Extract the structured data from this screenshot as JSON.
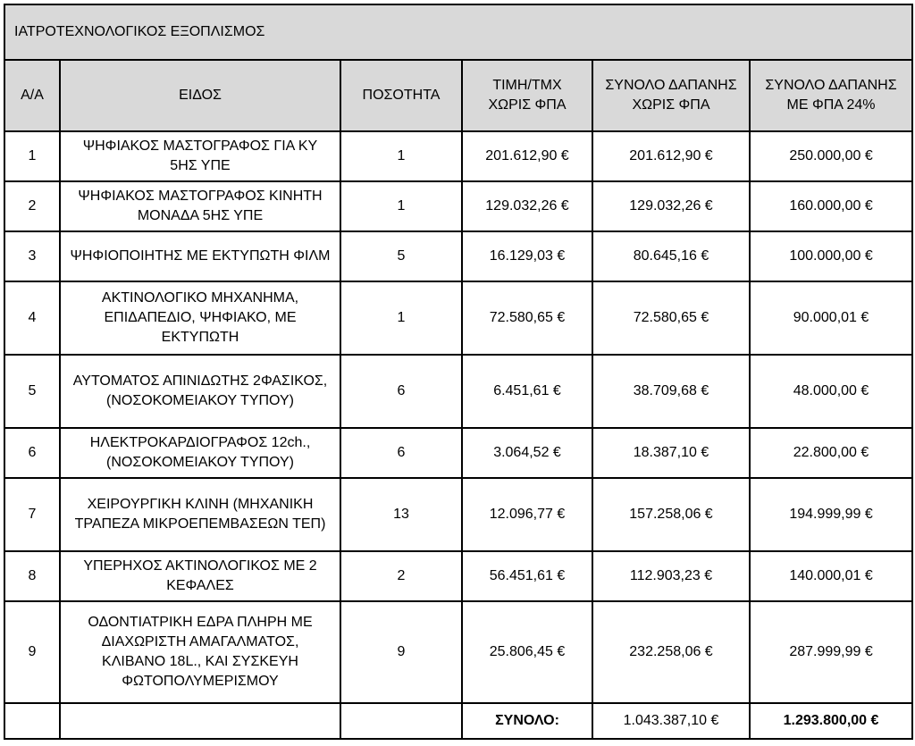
{
  "title": "ΙΑΤΡΟΤΕΧΝΟΛΟΓΙΚΟΣ ΕΞΟΠΛΙΣΜΟΣ",
  "table": {
    "columns": [
      "Α/Α",
      "ΕΙΔΟΣ",
      "ΠΟΣΟΤΗΤΑ",
      "ΤΙΜΗ/ΤΜΧ ΧΩΡΙΣ ΦΠΑ",
      "ΣΥΝΟΛΟ ΔΑΠΑΝΗΣ ΧΩΡΙΣ ΦΠΑ",
      "ΣΥΝΟΛΟ ΔΑΠΑΝΗΣ ΜΕ ΦΠΑ 24%"
    ],
    "rows": [
      [
        "1",
        "ΨΗΦΙΑΚΟΣ ΜΑΣΤΟΓΡΑΦΟΣ ΓΙΑ ΚΥ 5ΗΣ ΥΠΕ",
        "1",
        "201.612,90 €",
        "201.612,90 €",
        "250.000,00 €"
      ],
      [
        "2",
        "ΨΗΦΙΑΚΟΣ ΜΑΣΤΟΓΡΑΦΟΣ ΚΙΝΗΤΗ ΜΟΝΑΔΑ 5ΗΣ ΥΠΕ",
        "1",
        "129.032,26 €",
        "129.032,26 €",
        "160.000,00 €"
      ],
      [
        "3",
        "ΨΗΦΙΟΠΟΙΗΤΗΣ ΜΕ ΕΚΤΥΠΩΤΗ ΦΙΛΜ",
        "5",
        "16.129,03 €",
        "80.645,16 €",
        "100.000,00 €"
      ],
      [
        "4",
        "ΑΚΤΙΝΟΛΟΓΙΚΟ ΜΗΧΑΝΗΜΑ, ΕΠΙΔΑΠΕΔΙΟ, ΨΗΦΙΑΚΟ, ΜΕ ΕΚΤΥΠΩΤΗ",
        "1",
        "72.580,65 €",
        "72.580,65 €",
        "90.000,01 €"
      ],
      [
        "5",
        "ΑΥΤΟΜΑΤΟΣ ΑΠΙΝΙΔΩΤΗΣ 2ΦΑΣΙΚΟΣ, (ΝΟΣΟΚΟΜΕΙΑΚΟΥ ΤΥΠΟΥ)",
        "6",
        "6.451,61 €",
        "38.709,68 €",
        "48.000,00 €"
      ],
      [
        "6",
        "ΗΛΕΚΤΡΟΚΑΡΔΙΟΓΡΑΦΟΣ 12ch., (ΝΟΣΟΚΟΜΕΙΑΚΟΥ ΤΥΠΟΥ)",
        "6",
        "3.064,52 €",
        "18.387,10 €",
        "22.800,00 €"
      ],
      [
        "7",
        "ΧΕΙΡΟΥΡΓΙΚΗ ΚΛΙΝΗ (ΜΗΧΑΝΙΚΗ ΤΡΑΠΕΖΑ ΜΙΚΡΟΕΠΕΜΒΑΣΕΩΝ ΤΕΠ)",
        "13",
        "12.096,77 €",
        "157.258,06 €",
        "194.999,99 €"
      ],
      [
        "8",
        "ΥΠΕΡΗΧΟΣ ΑΚΤΙΝΟΛΟΓΙΚΟΣ ΜΕ 2 ΚΕΦΑΛΕΣ",
        "2",
        "56.451,61 €",
        "112.903,23 €",
        "140.000,01 €"
      ],
      [
        "9",
        "ΟΔΟΝΤΙΑΤΡΙΚΗ ΕΔΡΑ ΠΛΗΡΗ ΜΕ ΔΙΑΧΩΡΙΣΤΗ ΑΜΑΓΑΛΜΑΤΟΣ, ΚΛΙΒΑΝΟ 18L., ΚΑΙ ΣΥΣΚΕΥΗ ΦΩΤΟΠΟΛΥΜΕΡΙΣΜΟΥ",
        "9",
        "25.806,45 €",
        "232.258,06 €",
        "287.999,99 €"
      ]
    ],
    "total": {
      "label": "ΣΥΝΟΛΟ:",
      "without_vat": "1.043.387,10 €",
      "with_vat": "1.293.800,00 €"
    }
  }
}
